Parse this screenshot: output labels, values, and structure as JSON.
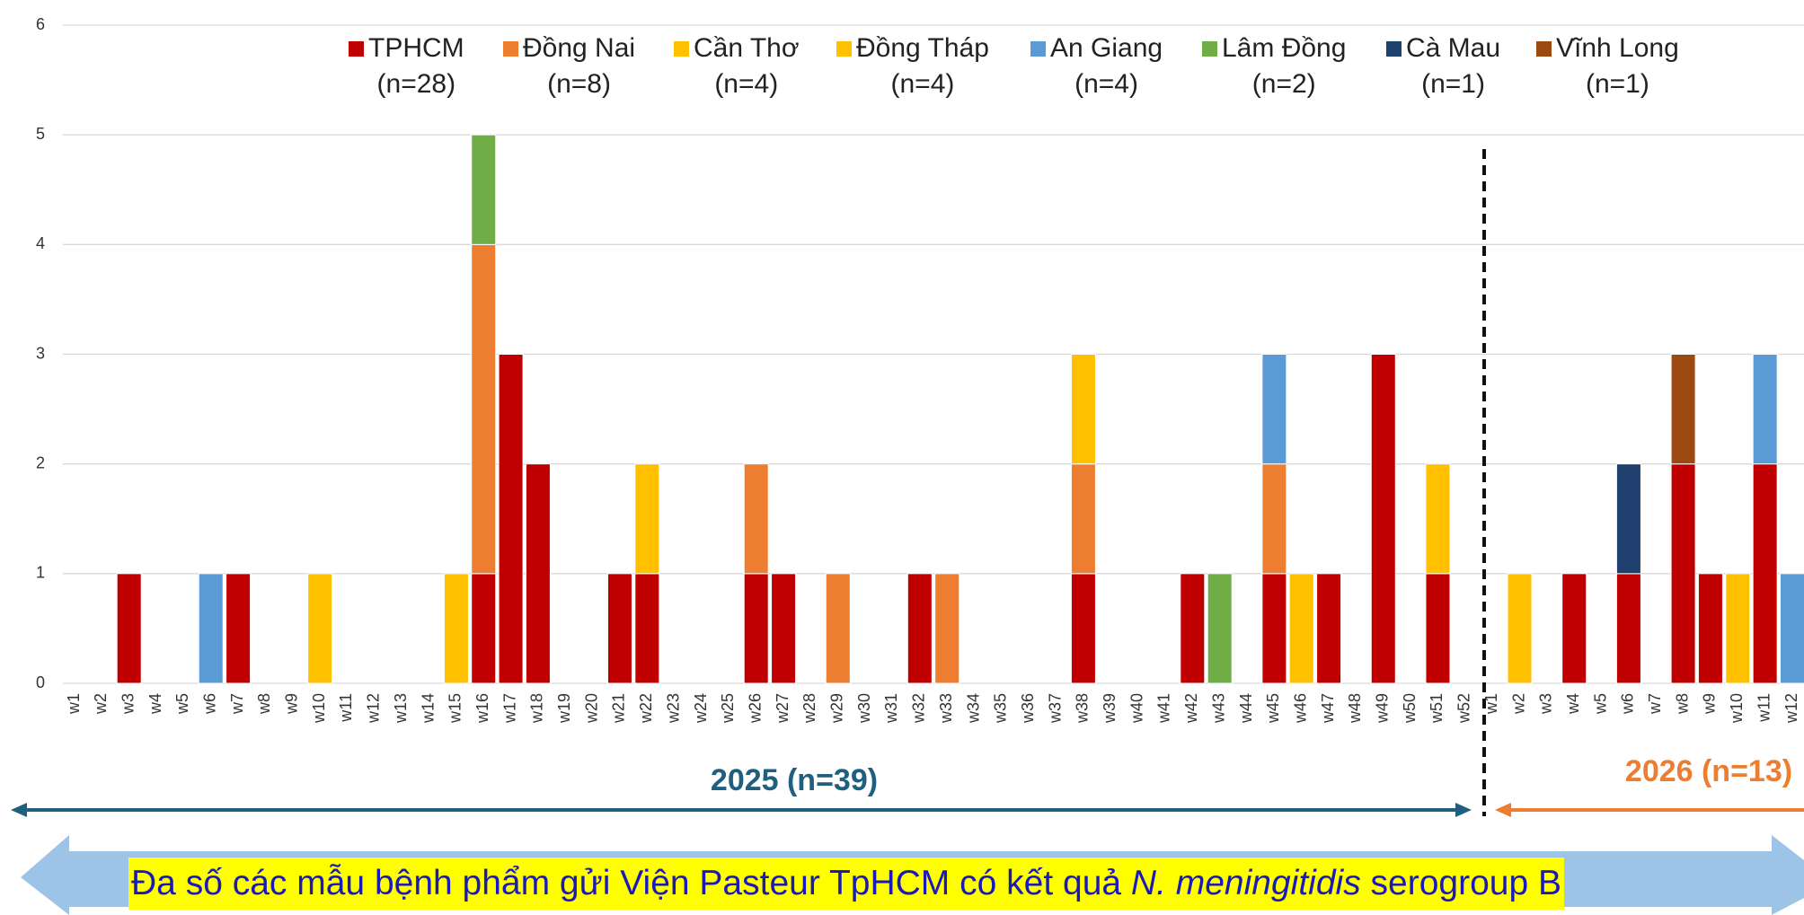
{
  "chart_data": {
    "type": "stacked-bar",
    "categories": [
      "w1",
      "w2",
      "w3",
      "w4",
      "w5",
      "w6",
      "w7",
      "w8",
      "w9",
      "w10",
      "w11",
      "w12",
      "w13",
      "w14",
      "w15",
      "w16",
      "w17",
      "w18",
      "w19",
      "w20",
      "w21",
      "w22",
      "w23",
      "w24",
      "w25",
      "w26",
      "w27",
      "w28",
      "w29",
      "w30",
      "w31",
      "w32",
      "w33",
      "w34",
      "w35",
      "w36",
      "w37",
      "w38",
      "w39",
      "w40",
      "w41",
      "w42",
      "w43",
      "w44",
      "w45",
      "w46",
      "w47",
      "w48",
      "w49",
      "w50",
      "w51",
      "w52",
      "w1",
      "w2",
      "w3",
      "w4",
      "w5",
      "w6",
      "w7",
      "w8",
      "w9",
      "w10",
      "w11",
      "w12"
    ],
    "series": [
      {
        "name": "TPHCM",
        "count_label": "(n=28)",
        "color": "#c00000",
        "values": [
          0,
          0,
          1,
          0,
          0,
          0,
          1,
          0,
          0,
          0,
          0,
          0,
          0,
          0,
          0,
          1,
          3,
          2,
          0,
          0,
          1,
          1,
          0,
          0,
          0,
          1,
          1,
          0,
          0,
          0,
          0,
          1,
          0,
          0,
          0,
          0,
          0,
          1,
          0,
          0,
          0,
          1,
          0,
          0,
          1,
          0,
          1,
          0,
          3,
          0,
          1,
          0,
          0,
          0,
          0,
          1,
          0,
          1,
          0,
          2,
          1,
          0,
          2,
          0
        ]
      },
      {
        "name": "Đồng Nai",
        "count_label": "(n=8)",
        "color": "#ed7d31",
        "values": [
          0,
          0,
          0,
          0,
          0,
          0,
          0,
          0,
          0,
          0,
          0,
          0,
          0,
          0,
          0,
          3,
          0,
          0,
          0,
          0,
          0,
          0,
          0,
          0,
          0,
          1,
          0,
          0,
          1,
          0,
          0,
          0,
          1,
          0,
          0,
          0,
          0,
          1,
          0,
          0,
          0,
          0,
          0,
          0,
          1,
          0,
          0,
          0,
          0,
          0,
          0,
          0,
          0,
          0,
          0,
          0,
          0,
          0,
          0,
          0,
          0,
          0,
          0,
          0
        ]
      },
      {
        "name": "Cần Thơ",
        "count_label": "(n=4)",
        "color": "#ffc000",
        "values": [
          0,
          0,
          0,
          0,
          0,
          0,
          0,
          0,
          0,
          1,
          0,
          0,
          0,
          0,
          1,
          0,
          0,
          0,
          0,
          0,
          0,
          1,
          0,
          0,
          0,
          0,
          0,
          0,
          0,
          0,
          0,
          0,
          0,
          0,
          0,
          0,
          0,
          1,
          0,
          0,
          0,
          0,
          0,
          0,
          0,
          0,
          0,
          0,
          0,
          0,
          0,
          0,
          0,
          0,
          0,
          0,
          0,
          0,
          0,
          0,
          0,
          0,
          0,
          0
        ]
      },
      {
        "name": "Đồng Tháp",
        "count_label": "(n=4)",
        "color": "#ffc000",
        "values": [
          0,
          0,
          0,
          0,
          0,
          0,
          0,
          0,
          0,
          0,
          0,
          0,
          0,
          0,
          0,
          0,
          0,
          0,
          0,
          0,
          0,
          0,
          0,
          0,
          0,
          0,
          0,
          0,
          0,
          0,
          0,
          0,
          0,
          0,
          0,
          0,
          0,
          0,
          0,
          0,
          0,
          0,
          0,
          0,
          0,
          1,
          0,
          0,
          0,
          0,
          1,
          0,
          0,
          1,
          0,
          0,
          0,
          0,
          0,
          0,
          0,
          1,
          0,
          0
        ]
      },
      {
        "name": "An Giang",
        "count_label": "(n=4)",
        "color": "#5b9bd5",
        "values": [
          0,
          0,
          0,
          0,
          0,
          1,
          0,
          0,
          0,
          0,
          0,
          0,
          0,
          0,
          0,
          0,
          0,
          0,
          0,
          0,
          0,
          0,
          0,
          0,
          0,
          0,
          0,
          0,
          0,
          0,
          0,
          0,
          0,
          0,
          0,
          0,
          0,
          0,
          0,
          0,
          0,
          0,
          0,
          0,
          1,
          0,
          0,
          0,
          0,
          0,
          0,
          0,
          0,
          0,
          0,
          0,
          0,
          0,
          0,
          0,
          0,
          0,
          1,
          1
        ]
      },
      {
        "name": "Lâm Đồng",
        "count_label": "(n=2)",
        "color": "#70ad47",
        "values": [
          0,
          0,
          0,
          0,
          0,
          0,
          0,
          0,
          0,
          0,
          0,
          0,
          0,
          0,
          0,
          1,
          0,
          0,
          0,
          0,
          0,
          0,
          0,
          0,
          0,
          0,
          0,
          0,
          0,
          0,
          0,
          0,
          0,
          0,
          0,
          0,
          0,
          0,
          0,
          0,
          0,
          0,
          1,
          0,
          0,
          0,
          0,
          0,
          0,
          0,
          0,
          0,
          0,
          0,
          0,
          0,
          0,
          0,
          0,
          0,
          0,
          0,
          0,
          0
        ]
      },
      {
        "name": "Cà Mau",
        "count_label": "(n=1)",
        "color": "#1f3f6e",
        "values": [
          0,
          0,
          0,
          0,
          0,
          0,
          0,
          0,
          0,
          0,
          0,
          0,
          0,
          0,
          0,
          0,
          0,
          0,
          0,
          0,
          0,
          0,
          0,
          0,
          0,
          0,
          0,
          0,
          0,
          0,
          0,
          0,
          0,
          0,
          0,
          0,
          0,
          0,
          0,
          0,
          0,
          0,
          0,
          0,
          0,
          0,
          0,
          0,
          0,
          0,
          0,
          0,
          0,
          0,
          0,
          0,
          0,
          1,
          0,
          0,
          0,
          0,
          0,
          0
        ]
      },
      {
        "name": "Vĩnh Long",
        "count_label": "(n=1)",
        "color": "#9c4a12",
        "values": [
          0,
          0,
          0,
          0,
          0,
          0,
          0,
          0,
          0,
          0,
          0,
          0,
          0,
          0,
          0,
          0,
          0,
          0,
          0,
          0,
          0,
          0,
          0,
          0,
          0,
          0,
          0,
          0,
          0,
          0,
          0,
          0,
          0,
          0,
          0,
          0,
          0,
          0,
          0,
          0,
          0,
          0,
          0,
          0,
          0,
          0,
          0,
          0,
          0,
          0,
          0,
          0,
          0,
          0,
          0,
          0,
          0,
          0,
          0,
          1,
          0,
          0,
          0,
          0
        ]
      }
    ],
    "ylim": [
      0,
      6
    ],
    "yticks": [
      0,
      1,
      2,
      3,
      4,
      5,
      6
    ],
    "grid": true,
    "annotations": [
      {
        "text": "2025 (n=39)",
        "color": "#1f5f7f"
      },
      {
        "text": "2026 (n=13)",
        "color": "#ed7d31"
      }
    ]
  },
  "banner": {
    "before": "Đa số các mẫu bệnh phẩm gửi Viện Pasteur TpHCM có kết quả",
    "italic": "N. meningitidis",
    "after": "serogroup B"
  }
}
